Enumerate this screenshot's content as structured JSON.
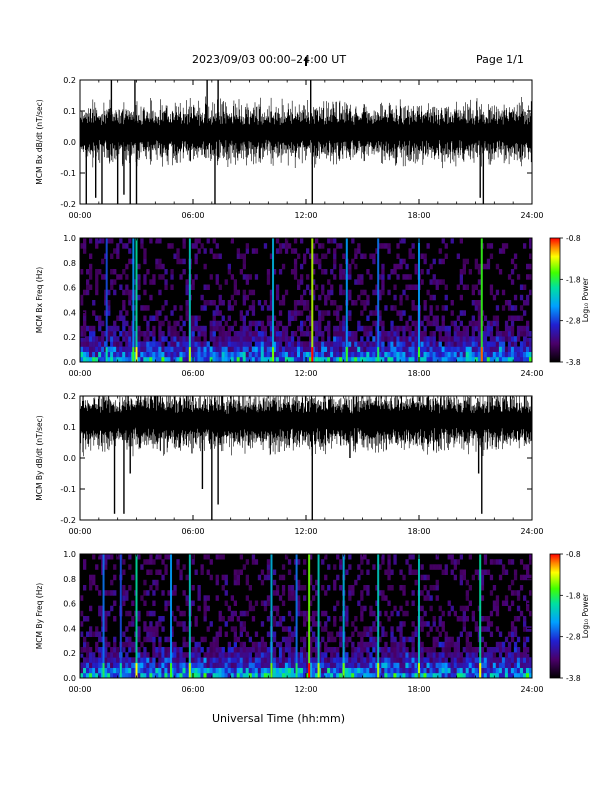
{
  "header": {
    "title": "2023/09/03  00:00–24:00 UT",
    "page": "Page 1/1"
  },
  "x_axis_label": "Universal Time (hh:mm)",
  "chart_data": [
    {
      "type": "line",
      "id": "bx_waveform",
      "ylabel": "MCM Bx dB/dt (nT/sec)",
      "xlabel": "Universal Time (hh:mm)",
      "xlim": [
        "00:00",
        "24:00"
      ],
      "ylim": [
        -0.2,
        0.2
      ],
      "x_ticks": [
        "00:00",
        "06:00",
        "12:00",
        "18:00",
        "24:00"
      ],
      "y_ticks": [
        "-0.2",
        "-0.1",
        "0.0",
        "0.1",
        "0.2"
      ],
      "baseline": 0.03,
      "spikes": [
        {
          "x": "00:20",
          "y": -0.2
        },
        {
          "x": "00:50",
          "y": -0.18
        },
        {
          "x": "01:10",
          "y": -0.2
        },
        {
          "x": "01:40",
          "y": 0.2
        },
        {
          "x": "02:00",
          "y": -0.2
        },
        {
          "x": "02:20",
          "y": -0.17
        },
        {
          "x": "02:40",
          "y": -0.2
        },
        {
          "x": "02:55",
          "y": 0.2
        },
        {
          "x": "03:00",
          "y": -0.2
        },
        {
          "x": "06:45",
          "y": 0.2
        },
        {
          "x": "07:10",
          "y": -0.2
        },
        {
          "x": "07:20",
          "y": 0.2
        },
        {
          "x": "12:15",
          "y": 0.2
        },
        {
          "x": "12:20",
          "y": -0.2
        },
        {
          "x": "21:15",
          "y": -0.18
        },
        {
          "x": "21:25",
          "y": -0.2
        }
      ]
    },
    {
      "type": "heatmap",
      "id": "bx_spectrogram",
      "ylabel": "MCM Bx Freq (Hz)",
      "xlabel": "Universal Time (hh:mm)",
      "xlim": [
        "00:00",
        "24:00"
      ],
      "ylim": [
        0.0,
        1.0
      ],
      "x_ticks": [
        "00:00",
        "06:00",
        "12:00",
        "18:00",
        "24:00"
      ],
      "y_ticks": [
        "0.0",
        "0.2",
        "0.4",
        "0.6",
        "0.8",
        "1.0"
      ],
      "colorbar": {
        "label": "Log₁₀ Power",
        "ticks": [
          "-0.8",
          "-1.8",
          "-2.8",
          "-3.8"
        ],
        "range": [
          -3.8,
          -0.8
        ]
      },
      "vertical_streaks": [
        {
          "x": "01:25",
          "level": 0.35
        },
        {
          "x": "02:50",
          "level": 0.45
        },
        {
          "x": "03:00",
          "level": 0.6
        },
        {
          "x": "05:50",
          "level": 0.55
        },
        {
          "x": "10:15",
          "level": 0.5
        },
        {
          "x": "12:20",
          "level": 0.8
        },
        {
          "x": "14:10",
          "level": 0.45
        },
        {
          "x": "15:50",
          "level": 0.4
        },
        {
          "x": "18:00",
          "level": 0.45
        },
        {
          "x": "21:20",
          "level": 0.7
        }
      ]
    },
    {
      "type": "line",
      "id": "by_waveform",
      "ylabel": "MCM By dB/dt (nT/sec)",
      "xlabel": "Universal Time (hh:mm)",
      "xlim": [
        "00:00",
        "24:00"
      ],
      "ylim": [
        -0.2,
        0.2
      ],
      "x_ticks": [
        "00:00",
        "06:00",
        "12:00",
        "18:00",
        "24:00"
      ],
      "y_ticks": [
        "-0.2",
        "-0.1",
        "0.0",
        "0.1",
        "0.2"
      ],
      "baseline": 0.12,
      "spikes": [
        {
          "x": "01:50",
          "y": -0.18
        },
        {
          "x": "02:20",
          "y": -0.18
        },
        {
          "x": "02:40",
          "y": -0.05
        },
        {
          "x": "06:30",
          "y": -0.1
        },
        {
          "x": "07:00",
          "y": -0.2
        },
        {
          "x": "07:20",
          "y": -0.15
        },
        {
          "x": "12:20",
          "y": -0.2
        },
        {
          "x": "14:20",
          "y": 0.0
        },
        {
          "x": "21:10",
          "y": -0.05
        },
        {
          "x": "21:20",
          "y": -0.18
        }
      ]
    },
    {
      "type": "heatmap",
      "id": "by_spectrogram",
      "ylabel": "MCM By Freq (Hz)",
      "xlabel": "Universal Time (hh:mm)",
      "xlim": [
        "00:00",
        "24:00"
      ],
      "ylim": [
        0.0,
        1.0
      ],
      "x_ticks": [
        "00:00",
        "06:00",
        "12:00",
        "18:00",
        "24:00"
      ],
      "y_ticks": [
        "0.0",
        "0.2",
        "0.4",
        "0.6",
        "0.8",
        "1.0"
      ],
      "colorbar": {
        "label": "Log₁₀ Power",
        "ticks": [
          "-0.8",
          "-1.8",
          "-2.8",
          "-3.8"
        ],
        "range": [
          -3.8,
          -0.8
        ]
      },
      "vertical_streaks": [
        {
          "x": "01:15",
          "level": 0.4
        },
        {
          "x": "02:10",
          "level": 0.35
        },
        {
          "x": "03:00",
          "level": 0.6
        },
        {
          "x": "04:50",
          "level": 0.45
        },
        {
          "x": "05:50",
          "level": 0.55
        },
        {
          "x": "10:10",
          "level": 0.5
        },
        {
          "x": "11:30",
          "level": 0.4
        },
        {
          "x": "12:10",
          "level": 0.75
        },
        {
          "x": "12:40",
          "level": 0.55
        },
        {
          "x": "14:00",
          "level": 0.5
        },
        {
          "x": "15:50",
          "level": 0.55
        },
        {
          "x": "18:00",
          "level": 0.55
        },
        {
          "x": "21:15",
          "level": 0.6
        }
      ]
    }
  ]
}
